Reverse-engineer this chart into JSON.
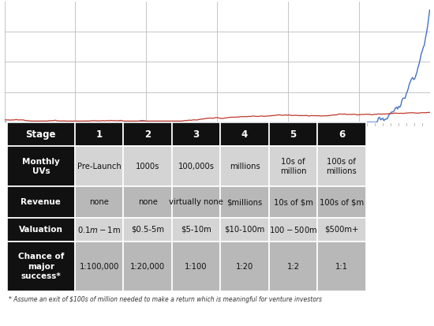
{
  "chart_bg": "#f0f0f0",
  "fig_bg": "#ffffff",
  "blue_color": "#4472C4",
  "red_color": "#C0392B",
  "grid_color": "#cccccc",
  "table_header_bg": "#111111",
  "table_header_fg": "#ffffff",
  "table_row1_bg": "#d4d4d4",
  "table_row2_bg": "#b8b8b8",
  "table_row3_bg": "#d4d4d4",
  "table_row4_bg": "#b8b8b8",
  "row_labels": [
    "Monthly\nUVs",
    "Revenue",
    "Valuation",
    "Chance of\nmajor\nsuccess*"
  ],
  "col_headers": [
    "Stage",
    "1",
    "2",
    "3",
    "4",
    "5",
    "6"
  ],
  "table_data": [
    [
      "Pre-Launch",
      "1000s",
      "100,000s",
      "millions",
      "10s of\nmillion",
      "100s of\nmillions"
    ],
    [
      "none",
      "none",
      "virtually none",
      "$millions",
      "10s of $m",
      "100s of $m"
    ],
    [
      "$0.1m - $1m",
      "$0.5-5m",
      "$5-10m",
      "$10-100m",
      "$100-$500m",
      "$500m+"
    ],
    [
      "1:100,000",
      "1:20,000",
      "1:100",
      "1:20",
      "1:2",
      "1:1"
    ]
  ],
  "footnote": "* Assume an exit of $100s of million needed to make a return which is meaningful for venture investors",
  "n_points": 400
}
